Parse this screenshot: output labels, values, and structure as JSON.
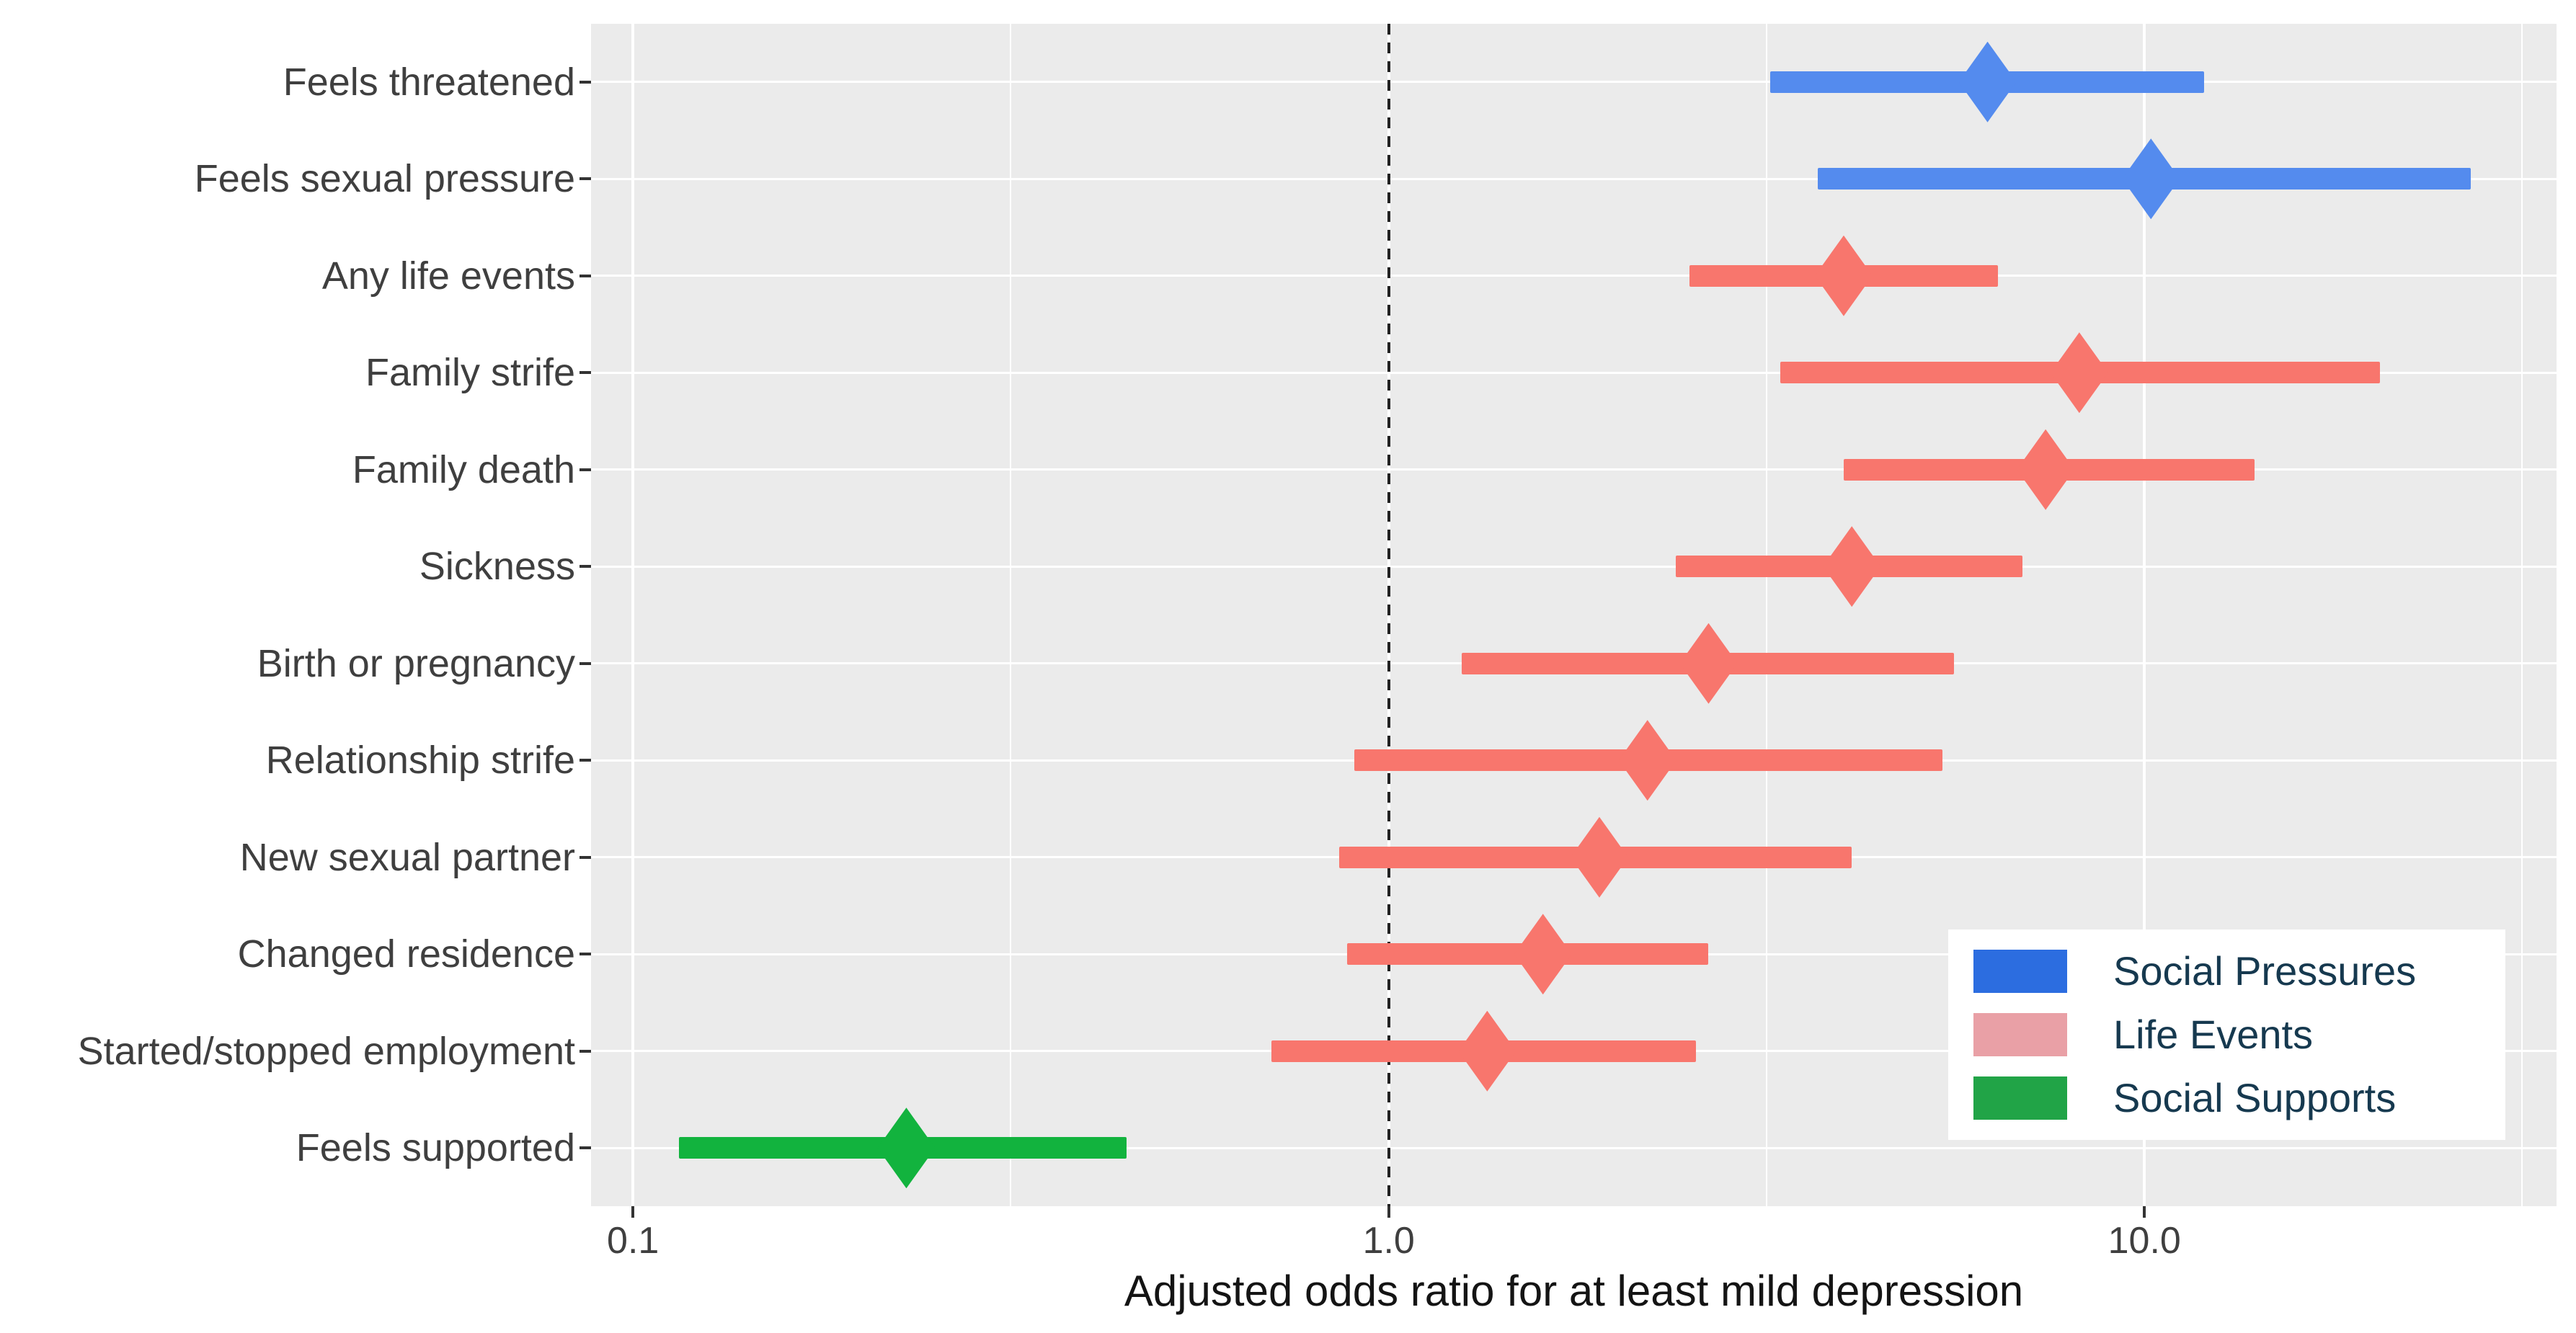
{
  "chart_data": {
    "type": "scatter",
    "subtype": "forest-plot-odds-ratios",
    "title": "",
    "xlabel": "Adjusted odds ratio for at least mild depression",
    "ylabel": "",
    "x_scale": "log10",
    "xlim": [
      0.088,
      35.1
    ],
    "grid": "on",
    "marker": "diamond",
    "panel_background": "#ebebeb",
    "gridline_color": "#ffffff",
    "x_major_ticks": [
      {
        "value": 0.1,
        "label": "0.1"
      },
      {
        "value": 1.0,
        "label": "1.0"
      },
      {
        "value": 10.0,
        "label": "10.0"
      }
    ],
    "x_minor_gridlines": [
      0.3162,
      3.162,
      31.62
    ],
    "reference_line": {
      "value": 1.0,
      "style": "dashed",
      "color": "#222222"
    },
    "groups": [
      {
        "name": "Social Pressures",
        "marker_color": "#548bee"
      },
      {
        "name": "Life Events",
        "marker_color": "#f8766d"
      },
      {
        "name": "Social Supports",
        "marker_color": "#12b33e"
      }
    ],
    "rows": [
      {
        "label": "Feels threatened",
        "group": "Social Pressures",
        "or": 6.2,
        "ci_low": 3.2,
        "ci_high": 12.0
      },
      {
        "label": "Feels sexual pressure",
        "group": "Social Pressures",
        "or": 10.2,
        "ci_low": 3.7,
        "ci_high": 27.0
      },
      {
        "label": "Any life events",
        "group": "Life Events",
        "or": 4.0,
        "ci_low": 2.5,
        "ci_high": 6.4
      },
      {
        "label": "Family strife",
        "group": "Life Events",
        "or": 8.2,
        "ci_low": 3.3,
        "ci_high": 20.5
      },
      {
        "label": "Family death",
        "group": "Life Events",
        "or": 7.4,
        "ci_low": 4.0,
        "ci_high": 14.0
      },
      {
        "label": "Sickness",
        "group": "Life Events",
        "or": 4.1,
        "ci_low": 2.4,
        "ci_high": 6.9
      },
      {
        "label": "Birth or pregnancy",
        "group": "Life Events",
        "or": 2.65,
        "ci_low": 1.25,
        "ci_high": 5.6
      },
      {
        "label": "Relationship strife",
        "group": "Life Events",
        "or": 2.2,
        "ci_low": 0.9,
        "ci_high": 5.4
      },
      {
        "label": "New sexual partner",
        "group": "Life Events",
        "or": 1.9,
        "ci_low": 0.86,
        "ci_high": 4.1
      },
      {
        "label": "Changed residence",
        "group": "Life Events",
        "or": 1.6,
        "ci_low": 0.88,
        "ci_high": 2.65
      },
      {
        "label": "Started/stopped employment",
        "group": "Life Events",
        "or": 1.35,
        "ci_low": 0.7,
        "ci_high": 2.55
      },
      {
        "label": "Feels supported",
        "group": "Social Supports",
        "or": 0.23,
        "ci_low": 0.115,
        "ci_high": 0.45
      }
    ]
  },
  "legend": {
    "position": "inside-bottom-right",
    "background": "#ffffff",
    "text_color": "#16394f",
    "items": [
      {
        "label": "Social Pressures",
        "swatch_color": "#2c6de0"
      },
      {
        "label": "Life Events",
        "swatch_color": "#e9a0a6"
      },
      {
        "label": "Social Supports",
        "swatch_color": "#21a447"
      }
    ]
  },
  "axis_style": {
    "text_color": "#3f3f3f",
    "tick_color": "#333333",
    "title_color": "#141414"
  }
}
